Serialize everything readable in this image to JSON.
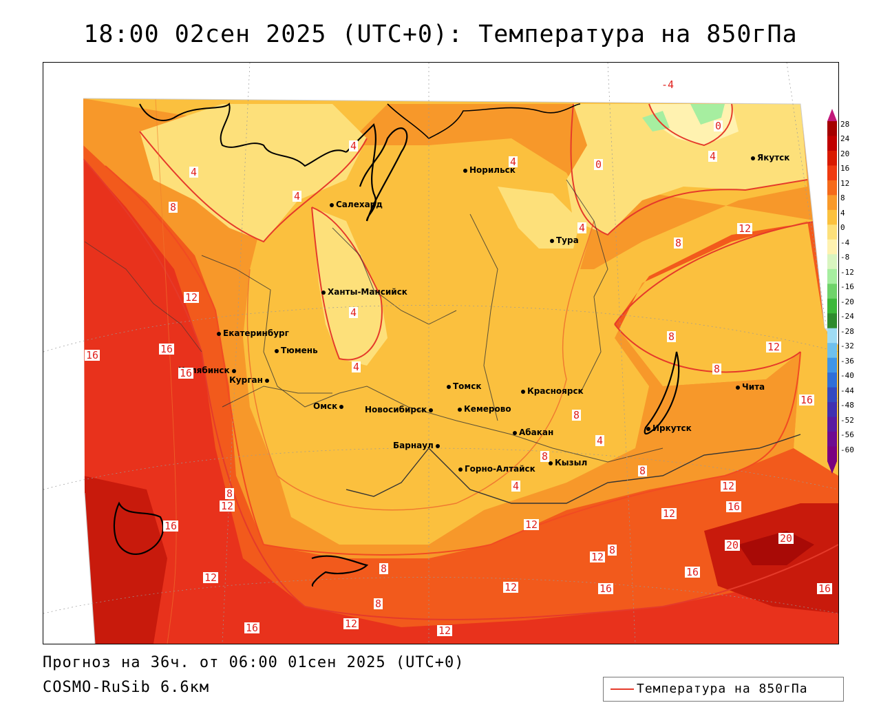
{
  "title": "18:00 02сен 2025 (UTC+0): Температура на 850гПа",
  "footer": {
    "forecast": "Прогноз на 36ч. от 06:00 01сен 2025 (UTC+0)",
    "model": "COSMO-RuSib 6.6км"
  },
  "legend": {
    "label": "Температура на 850гПа",
    "color": "#e53a2a"
  },
  "colorbar": {
    "ticks": [
      "28",
      "24",
      "20",
      "16",
      "12",
      "8",
      "4",
      "0",
      "-4",
      "-8",
      "-12",
      "-16",
      "-20",
      "-24",
      "-28",
      "-32",
      "-36",
      "-40",
      "-44",
      "-48",
      "-52",
      "-56",
      "-60"
    ],
    "colors": [
      "#a50000",
      "#c00000",
      "#d91a00",
      "#ef3a10",
      "#f56a1a",
      "#f99a2a",
      "#fbc13e",
      "#fde07a",
      "#fff2b0",
      "#d9f5c0",
      "#a6eea0",
      "#6fd36a",
      "#3cb83a",
      "#2e8b2e",
      "#9fdcf5",
      "#6ec0ee",
      "#3f95e6",
      "#2f6fd8",
      "#3349c0",
      "#4030b0",
      "#5a1aa0",
      "#6e0c90",
      "#7a0080"
    ],
    "top_color": "#c2187a",
    "bottom_color": "#7a0080"
  },
  "cities": [
    {
      "name": "Норильск"
    },
    {
      "name": "Якутск"
    },
    {
      "name": "Салехард"
    },
    {
      "name": "Тура"
    },
    {
      "name": "Ханты-Мансийск"
    },
    {
      "name": "Екатеринбург"
    },
    {
      "name": "Тюмень"
    },
    {
      "name": "Челябинск"
    },
    {
      "name": "Курган"
    },
    {
      "name": "Омск"
    },
    {
      "name": "Томск"
    },
    {
      "name": "Красноярск"
    },
    {
      "name": "Новосибирск"
    },
    {
      "name": "Кемерово"
    },
    {
      "name": "Абакан"
    },
    {
      "name": "Иркутск"
    },
    {
      "name": "Чита"
    },
    {
      "name": "Барнаул"
    },
    {
      "name": "Горно-Алтайск"
    },
    {
      "name": "Кызыл"
    }
  ],
  "contour_labels": [
    "-4",
    "0",
    "0",
    "4",
    "4",
    "4",
    "4",
    "4",
    "4",
    "4",
    "4",
    "4",
    "4",
    "8",
    "8",
    "8",
    "8",
    "8",
    "8",
    "8",
    "8",
    "8",
    "8",
    "8",
    "12",
    "12",
    "12",
    "12",
    "12",
    "12",
    "12",
    "12",
    "12",
    "12",
    "12",
    "12",
    "16",
    "16",
    "16",
    "16",
    "16",
    "16",
    "16",
    "16",
    "16",
    "16",
    "20",
    "20"
  ]
}
